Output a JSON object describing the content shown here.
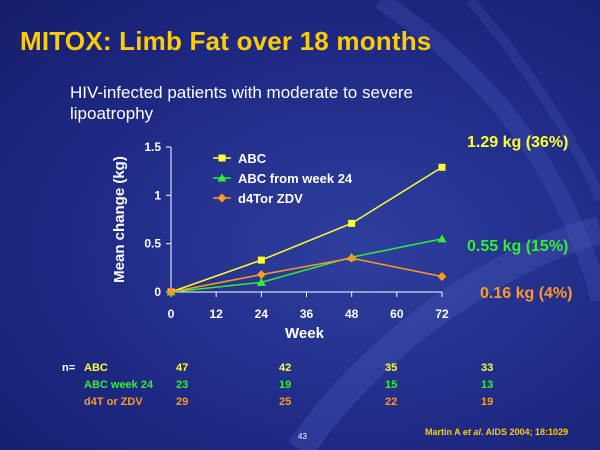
{
  "slide": {
    "title": "MITOX: Limb Fat over 18 months",
    "subtitle": "HIV-infected patients with moderate to severe lipoatrophy",
    "slide_number": "43",
    "citation_pre": "Martin A ",
    "citation_em": "et al",
    "citation_post": ". AIDS 2004; 18:1029"
  },
  "annotations": {
    "abc": "1.29 kg (36%)",
    "abc_week24": "0.55 kg (15%)",
    "d4t": "0.16 kg (4%)"
  },
  "colors": {
    "abc": "#ffff33",
    "abc_week24": "#33ee33",
    "d4t": "#ff9922",
    "title": "#ffcc00"
  },
  "n_table": {
    "prefix": "n=",
    "rows": [
      {
        "label": "ABC",
        "values": [
          "47",
          "42",
          "35",
          "33"
        ]
      },
      {
        "label": "ABC week 24",
        "values": [
          "23",
          "19",
          "15",
          "13"
        ]
      },
      {
        "label": "d4T or ZDV",
        "values": [
          "29",
          "25",
          "22",
          "19"
        ]
      }
    ]
  },
  "chart_data": {
    "type": "line",
    "xlabel": "Week",
    "ylabel": "Mean change (kg)",
    "xlim": [
      0,
      72
    ],
    "ylim": [
      0,
      1.5
    ],
    "x_ticks": [
      0,
      12,
      24,
      36,
      48,
      60,
      72
    ],
    "y_ticks": [
      0,
      0.5,
      1,
      1.5
    ],
    "y_tick_labels": [
      "0",
      "0.5",
      "1",
      "1.5"
    ],
    "legend_position": "top-left",
    "series": [
      {
        "name": "ABC",
        "marker": "square",
        "color": "#ffff33",
        "x": [
          0,
          24,
          48,
          72
        ],
        "y": [
          0,
          0.33,
          0.71,
          1.29
        ]
      },
      {
        "name": "ABC from week 24",
        "marker": "triangle",
        "color": "#33ee33",
        "x": [
          0,
          24,
          48,
          72
        ],
        "y": [
          0,
          0.1,
          0.36,
          0.55
        ]
      },
      {
        "name": "d4Tor ZDV",
        "marker": "diamond",
        "color": "#ff9922",
        "x": [
          0,
          24,
          48,
          72
        ],
        "y": [
          0,
          0.18,
          0.35,
          0.16
        ]
      }
    ]
  }
}
